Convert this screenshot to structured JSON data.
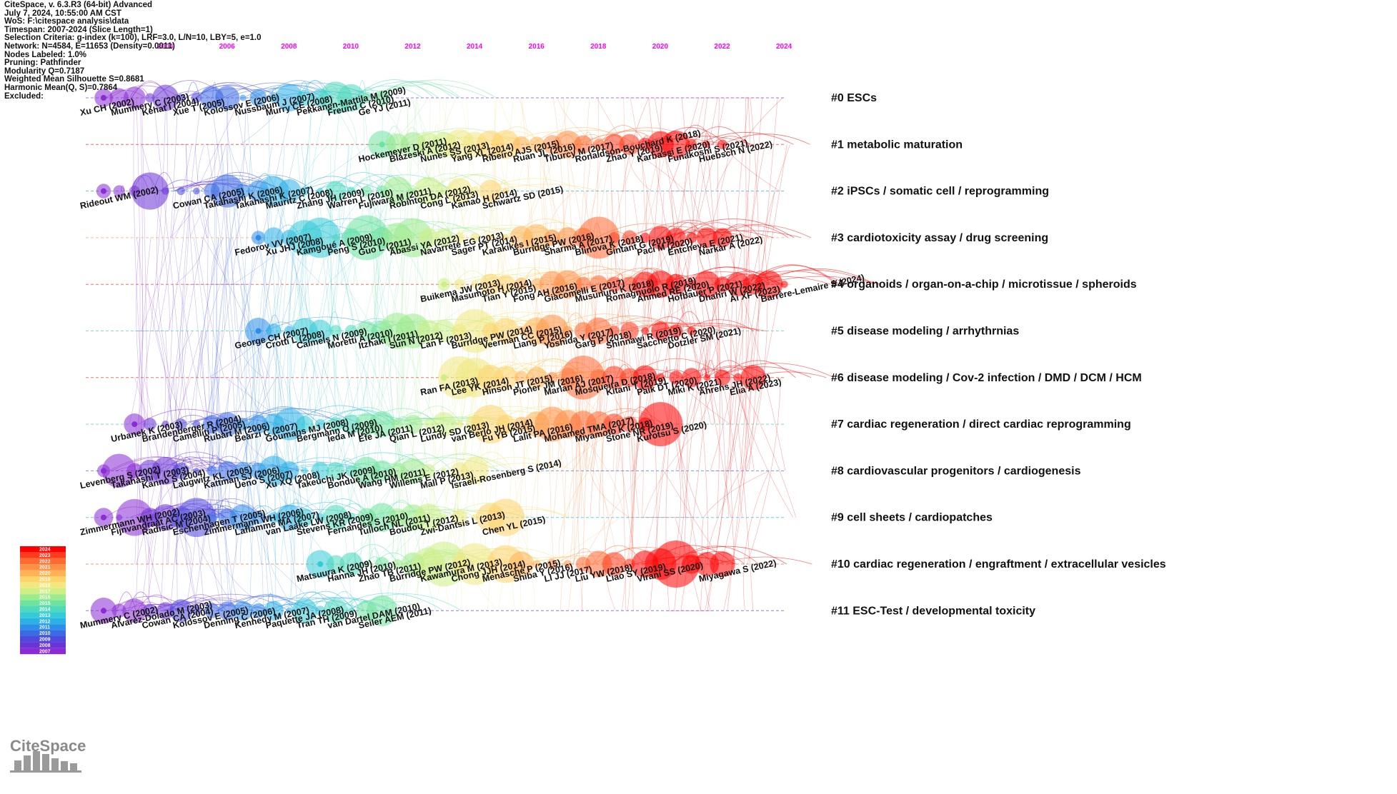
{
  "header": {
    "lines": [
      "CiteSpace, v. 6.3.R3 (64-bit) Advanced",
      "July 7, 2024, 10:55:00 AM CST",
      "WoS: F:\\citespace analysis\\data",
      "Timespan: 2007-2024 (Slice Length=1)",
      "Selection Criteria: g-index (k=100), LRF=3.0, L/N=10, LBY=5, e=1.0",
      "Network: N=4584, E=11653 (Density=0.0011)",
      "Nodes Labeled: 1.0%",
      "Pruning: Pathfinder",
      "Modularity Q=0.7187",
      "Weighted Mean Silhouette S=0.8681",
      "Harmonic Mean(Q, S)=0.7864",
      "Excluded:"
    ]
  },
  "timeline_years": [
    "2004",
    "2006",
    "2008",
    "2010",
    "2012",
    "2014",
    "2016",
    "2018",
    "2020",
    "2022",
    "2024"
  ],
  "clusters": [
    {
      "label": "#0 ESCs",
      "color": "#7b3fd6",
      "labels": [
        "Xu CH (2002)",
        "Mummery C (2003)",
        "Kehat I (2004)",
        "Xue T (2005)",
        "Kolossov E (2006)",
        "Nussbaum J (2007)",
        "Murry CE (2008)",
        "Pekkanen-Mattila M (2009)",
        "Freund C (2010)",
        "Ge YJ (2011)"
      ]
    },
    {
      "label": "#1 metabolic maturation",
      "color": "#e8331b",
      "labels": [
        "Hockemeyer D (2011)",
        "Blazeski A (2012)",
        "Nunes SS (2013)",
        "Yang XL (2014)",
        "Ribeiro AJS (2015)",
        "Ruan JL (2016)",
        "Tiburcy M (2017)",
        "Ronaldson-Bouchard K (2018)",
        "Zhao Y (2019)",
        "Karbassi E (2020)",
        "Funakoshi S (2021)",
        "Huebsch N (2022)"
      ]
    },
    {
      "label": "#2 iPSCs / somatic cell / reprogramming",
      "color": "#29a3e0",
      "labels": [
        "Rideout WM (2002)",
        "Cowan CA (2005)",
        "Takahashi K (2006)",
        "Takahashi K (2007)",
        "Mauritz C (2008)",
        "Zhang JH (2009)",
        "Warren L (2010)",
        "Fujiwara M (2011)",
        "Robinton DA (2012)",
        "Cong L (2013)",
        "Kamao H (2014)",
        "Schwartz SD (2015)"
      ]
    },
    {
      "label": "#3 cardiotoxicity assay / drug screening",
      "color": "#f2a36b",
      "labels": [
        "Fedorov VV (2007)",
        "Xu JHJ (2008)",
        "Kamgoué A (2009)",
        "Peng S (2010)",
        "Guo L (2011)",
        "Abassi YA (2012)",
        "Navarrete EG (2013)",
        "Sager PT (2014)",
        "Karakikes I (2015)",
        "Burridge PW (2016)",
        "Sharma A (2017)",
        "Blinova K (2018)",
        "Gintant G (2019)",
        "Paci M (2020)",
        "Entcheva E (2021)",
        "Narkar A (2022)"
      ]
    },
    {
      "label": "#4 organoids / organ-on-a-chip / microtissue / spheroids",
      "color": "#ef3b2c",
      "labels": [
        "Buikema JW (2013)",
        "Masumoto H (2014)",
        "Tian Y (2015)",
        "Fong AH (2016)",
        "Giacomelli E (2017)",
        "Musunuru K (2018)",
        "Romagnuolo R (2019)",
        "Ahmed RE (2020)",
        "Hofbauer P (2021)",
        "Dhahri W (2022)",
        "Ai XF (2023)",
        "Barrère-Lemaire S (2024)"
      ]
    },
    {
      "label": "#5 disease modeling / arrhythrnias",
      "color": "#3fd9c2",
      "labels": [
        "George CH (2007)",
        "Crotti L (2008)",
        "Calmels N (2009)",
        "Moretti A (2010)",
        "Itzhaki I (2011)",
        "Sun N (2012)",
        "Lan F (2013)",
        "Burridge PW (2014)",
        "Veerman CC (2015)",
        "Liang P (2016)",
        "Yoshida Y (2017)",
        "Garg P (2018)",
        "Shinnawi R (2019)",
        "Sacchetto C (2020)",
        "Dotzler SM (2021)"
      ]
    },
    {
      "label": "#6 disease modeling / Cov-2 infection / DMD / DCM / HCM",
      "color": "#ef3b2c",
      "labels": [
        "Ran FA (2013)",
        "Lee YK (2014)",
        "Hinson JT (2015)",
        "Pioner JM (2016)",
        "Marian AJ (2017)",
        "Mosqueira D (2018)",
        "Kitani T (2019)",
        "Paik DT (2020)",
        "Miki K (2021)",
        "Ahrens JH (2022)",
        "Elia A (2023)"
      ]
    },
    {
      "label": "#7 cardiac regeneration / direct cardiac reprogramming",
      "color": "#4cc9b0",
      "labels": [
        "Urbanek K (2003)",
        "Brandenberger R (2004)",
        "Camelliti P (2005)",
        "Rubart M (2006)",
        "Bearzi C (2007)",
        "Goumans MJ (2008)",
        "Bergmann O (2009)",
        "Ieda M (2010)",
        "Efe JA (2011)",
        "Qian L (2012)",
        "Lundy SD (2013)",
        "van Berlo JH (2014)",
        "Fu YB (2015)",
        "Lalit PA (2016)",
        "Mohamed TMA (2017)",
        "Miyamoto K (2018)",
        "Stone NR (2019)",
        "Kurotsu S (2020)"
      ]
    },
    {
      "label": "#8 cardiovascular progenitors / cardiogenesis",
      "color": "#3f6fe0",
      "labels": [
        "Levenberg S (2002)",
        "Takahashi T (2003)",
        "Kanno S (2004)",
        "Laugwitz KL (2005)",
        "Kattman SJ (2006)",
        "Ueno S (2007)",
        "Xu XQ (2008)",
        "Takeuchi JK (2009)",
        "Bondue A (2010)",
        "Wang HM (2011)",
        "Willems E (2012)",
        "Mali P (2013)",
        "Israeli-Rosenberg S (2014)"
      ]
    },
    {
      "label": "#9 cell sheets / cardiopatches",
      "color": "#35b3e8",
      "labels": [
        "Zimmermann WH (2002)",
        "Fijnvandraat AC (2003)",
        "Radisic M (2004)",
        "Eschenhagen T (2005)",
        "Zimmermann WH (2006)",
        "Laflamme MA (2007)",
        "van Laake LW (2008)",
        "Stevens KR (2009)",
        "Fernandes S (2010)",
        "Tulloch NL (2011)",
        "Boudou T (2012)",
        "Zwi-Dantsis L (2013)",
        "Chen YL (2015)"
      ]
    },
    {
      "label": "#10 cardiac regeneration / engraftment / extracellular vesicles",
      "color": "#f06a3a",
      "labels": [
        "Matsuura K (2009)",
        "Hanna JH (2010)",
        "Zhao TB (2011)",
        "Burridge PW (2012)",
        "Kawamura M (2013)",
        "Chong JJH (2014)",
        "Menasché P (2015)",
        "Shiba Y (2016)",
        "Li JJ (2017)",
        "Liu YW (2018)",
        "Liao SY (2019)",
        "Virani SS (2020)",
        "Miyagawa S (2022)"
      ]
    },
    {
      "label": "#11 ESC-Test / developmental toxicity",
      "color": "#6a3fd6",
      "labels": [
        "Mummery C (2002)",
        "Alvarez-Dolado M (2003)",
        "Cowan CA (2004)",
        "Kolossov E (2005)",
        "Denning C (2006)",
        "Kennedy M (2007)",
        "Paquette JA (2008)",
        "Tran TH (2009)",
        "van Dartel DAM (2010)",
        "Seiler AEM (2011)"
      ]
    }
  ],
  "legend": {
    "years": [
      "2024",
      "2023",
      "2022",
      "2021",
      "2020",
      "2019",
      "2018",
      "2017",
      "2016",
      "2015",
      "2014",
      "2013",
      "2012",
      "2011",
      "2010",
      "2009",
      "2008",
      "2007"
    ],
    "colors": [
      "#ff0000",
      "#ff3b1f",
      "#ff6a33",
      "#ff8f44",
      "#ffb356",
      "#ffd36a",
      "#f2e880",
      "#cdef86",
      "#9ceb8c",
      "#6ee39f",
      "#4dd9bc",
      "#35cbd6",
      "#2ab1e6",
      "#2b8ee8",
      "#3a6ae4",
      "#5048dc",
      "#6a33d6",
      "#8a2bd4"
    ]
  },
  "logo": "CiteSpace"
}
